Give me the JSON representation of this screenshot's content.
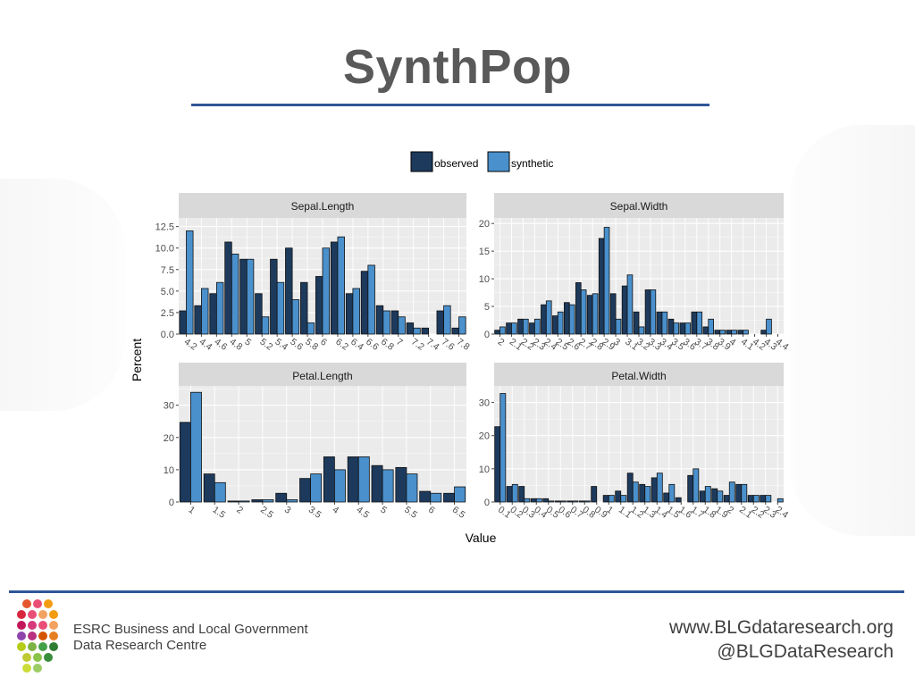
{
  "slide": {
    "title": "SynthPop",
    "org_line1": "ESRC Business and Local Government",
    "org_line2": "Data Research Centre",
    "website": "www.BLGdataresearch.org",
    "twitter": "@BLGDataResearch"
  },
  "colors": {
    "observed": "#1d3a5c",
    "synthetic": "#4a90cc",
    "panel_bg": "#ebebeb",
    "strip_bg": "#d9d9d9",
    "grid": "#ffffff",
    "accent": "#2f5597"
  },
  "chart_data": {
    "type": "bar",
    "xlabel": "Value",
    "ylabel": "Percent",
    "legend": {
      "position": "top",
      "entries": [
        "observed",
        "synthetic"
      ]
    },
    "panels": [
      {
        "title": "Sepal.Length",
        "ylim": [
          0,
          13.5
        ],
        "yticks": [
          0.0,
          2.5,
          5.0,
          7.5,
          10.0,
          12.5
        ],
        "ytick_labels": [
          "0.0",
          "2.5",
          "5.0",
          "7.5",
          "10.0",
          "12.5"
        ],
        "categories": [
          "4.2",
          "4.4",
          "4.6",
          "4.8",
          "5",
          "5.2",
          "5.4",
          "5.6",
          "5.8",
          "6",
          "6.2",
          "6.4",
          "6.6",
          "6.8",
          "7",
          "7.2",
          "7.4",
          "7.6",
          "7.8"
        ],
        "x_tick_labels": [
          "4.2",
          "4.4",
          "4.6",
          "4.8",
          "5",
          "5.2",
          "5.4",
          "5.6",
          "5.8",
          "6",
          "6.2",
          "6.4",
          "6.6",
          "6.8",
          "7",
          "7.2",
          "7.4",
          "7.6",
          "7.8"
        ],
        "series": [
          {
            "name": "observed",
            "values": [
              2.7,
              3.3,
              4.7,
              10.7,
              8.7,
              4.7,
              8.7,
              10.0,
              6.0,
              6.7,
              10.7,
              4.7,
              7.3,
              3.3,
              2.7,
              1.3,
              0.7,
              2.7,
              0.7
            ]
          },
          {
            "name": "synthetic",
            "values": [
              12.0,
              5.3,
              6.0,
              9.3,
              8.7,
              2.0,
              6.0,
              4.0,
              1.3,
              10.0,
              11.3,
              5.3,
              8.0,
              2.7,
              2.0,
              0.7,
              0.0,
              3.3,
              2.0
            ]
          }
        ]
      },
      {
        "title": "Sepal.Width",
        "ylim": [
          0,
          21
        ],
        "yticks": [
          0,
          5,
          10,
          15,
          20
        ],
        "ytick_labels": [
          "0",
          "5",
          "10",
          "15",
          "20"
        ],
        "categories": [
          "2",
          "2.1",
          "2.2",
          "2.3",
          "2.4",
          "2.5",
          "2.6",
          "2.7",
          "2.8",
          "2.9",
          "3",
          "3.1",
          "3.2",
          "3.3",
          "3.4",
          "3.5",
          "3.6",
          "3.7",
          "3.8",
          "3.9",
          "4",
          "4.1",
          "4.2",
          "4.3",
          "4.4"
        ],
        "x_tick_labels": [
          "2",
          "2.1",
          "2.2",
          "2.3",
          "2.4",
          "2.5",
          "2.6",
          "2.7",
          "2.8",
          "2.9",
          "3",
          "3.1",
          "3.2",
          "3.3",
          "3.4",
          "3.5",
          "3.6",
          "3.7",
          "3.8",
          "3.9",
          "4",
          "4.1",
          "4.2",
          "4.3",
          "4.4"
        ],
        "series": [
          {
            "name": "observed",
            "values": [
              0.7,
              2.0,
              2.7,
              2.0,
              5.3,
              3.3,
              5.7,
              9.3,
              7.0,
              17.3,
              7.3,
              8.7,
              4.0,
              8.0,
              4.0,
              2.7,
              2.0,
              4.0,
              1.3,
              0.7,
              0.7,
              0.7,
              0.0,
              0.7,
              0.0
            ]
          },
          {
            "name": "synthetic",
            "values": [
              1.3,
              2.0,
              2.7,
              2.7,
              6.0,
              4.0,
              5.3,
              8.0,
              7.3,
              19.3,
              2.7,
              10.7,
              1.3,
              8.0,
              4.0,
              2.0,
              2.0,
              4.0,
              2.7,
              0.7,
              0.7,
              0.7,
              0.0,
              2.7,
              0.0
            ]
          }
        ]
      },
      {
        "title": "Petal.Length",
        "ylim": [
          0,
          36
        ],
        "yticks": [
          0,
          10,
          20,
          30
        ],
        "ytick_labels": [
          "0",
          "10",
          "20",
          "30"
        ],
        "categories": [
          "1",
          "1.5",
          "2",
          "2.5",
          "3",
          "3.5",
          "4",
          "4.5",
          "5",
          "5.5",
          "6",
          "6.5"
        ],
        "x_tick_labels": [
          "1",
          "1.5",
          "2",
          "2.5",
          "3",
          "3.5",
          "4",
          "4.5",
          "5",
          "5.5",
          "6",
          "6.5"
        ],
        "series": [
          {
            "name": "observed",
            "values": [
              24.7,
              8.7,
              0.3,
              0.7,
              2.7,
              7.3,
              14.0,
              14.0,
              11.3,
              10.7,
              3.3,
              2.7
            ]
          },
          {
            "name": "synthetic",
            "values": [
              34.0,
              6.0,
              0.3,
              0.7,
              0.7,
              8.7,
              10.0,
              14.0,
              10.0,
              8.7,
              2.7,
              4.7
            ]
          }
        ]
      },
      {
        "title": "Petal.Width",
        "ylim": [
          0,
          35
        ],
        "yticks": [
          0,
          10,
          20,
          30
        ],
        "ytick_labels": [
          "0",
          "10",
          "20",
          "30"
        ],
        "categories": [
          "0.1",
          "0.2",
          "0.3",
          "0.4",
          "0.5",
          "0.6",
          "0.7",
          "0.8",
          "0.9",
          "1",
          "1.1",
          "1.2",
          "1.3",
          "1.4",
          "1.5",
          "1.6",
          "1.7",
          "1.8",
          "1.9",
          "2",
          "2.1",
          "2.2",
          "2.3",
          "2.4"
        ],
        "x_tick_labels": [
          "0.1",
          "0.2",
          "0.3",
          "0.4",
          "0.5",
          "0.6",
          "0.7",
          "0.8",
          "0.9",
          "1",
          "1.1",
          "1.2",
          "1.3",
          "1.4",
          "1.5",
          "1.6",
          "1.7",
          "1.8",
          "1.9",
          "2",
          "2.1",
          "2.2",
          "2.3",
          "2.4"
        ],
        "series": [
          {
            "name": "observed",
            "values": [
              22.7,
              4.7,
              4.7,
              1.0,
              1.0,
              0.3,
              0.3,
              0.3,
              4.7,
              2.0,
              3.3,
              8.7,
              5.3,
              7.3,
              2.7,
              1.3,
              8.0,
              3.3,
              4.0,
              2.0,
              5.3,
              2.0,
              2.0,
              0.0
            ]
          },
          {
            "name": "synthetic",
            "values": [
              32.7,
              5.3,
              1.0,
              1.0,
              0.3,
              0.3,
              0.3,
              0.3,
              0.0,
              2.0,
              2.0,
              6.0,
              4.7,
              8.7,
              5.3,
              0.0,
              10.0,
              4.7,
              3.3,
              6.0,
              5.3,
              2.0,
              2.0,
              1.0
            ]
          }
        ]
      }
    ]
  }
}
